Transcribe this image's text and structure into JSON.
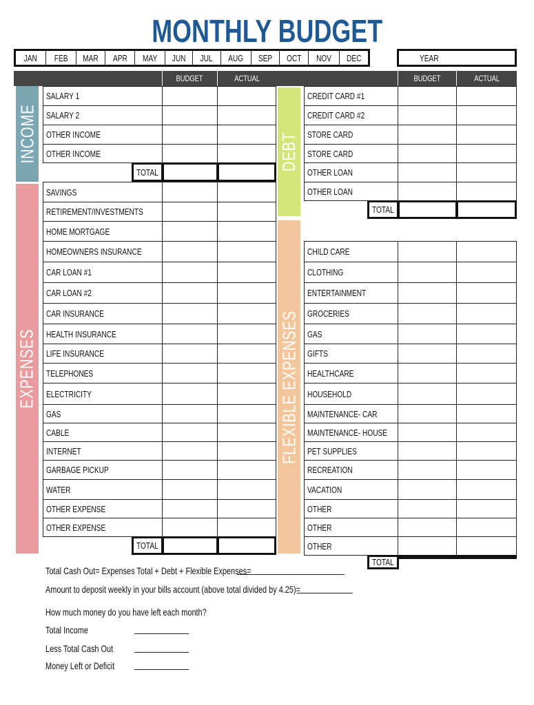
{
  "title": "MONTHLY BUDGET",
  "months": [
    "JAN",
    "FEB",
    "MAR",
    "APR",
    "MAY",
    "JUN",
    "JUL",
    "AUG",
    "SEP",
    "OCT",
    "NOV",
    "DEC"
  ],
  "year_label": "YEAR",
  "columns": {
    "budget": "BUDGET",
    "actual": "ACTUAL"
  },
  "total_label": "TOTAL",
  "colors": {
    "title": "#1f5a96",
    "income": "#7aa7b3",
    "expenses": "#e89a9c",
    "debt": "#d4e67a",
    "flexible": "#f3c59a",
    "header": "#444444"
  },
  "income": {
    "label": "INCOME",
    "items": [
      "SALARY  1",
      "SALARY  2",
      "OTHER INCOME",
      "OTHER INCOME"
    ]
  },
  "expenses": {
    "label": "EXPENSES",
    "items": [
      "SAVINGS",
      "RETIREMENT/INVESTMENTS",
      "HOME MORTGAGE",
      "HOMEOWNERS INSURANCE",
      "CAR LOAN #1",
      "CAR LOAN #2",
      "CAR INSURANCE",
      "HEALTH INSURANCE",
      "LIFE INSURANCE",
      "TELEPHONES",
      "ELECTRICITY",
      "GAS",
      "CABLE",
      "INTERNET",
      "GARBAGE PICKUP",
      "WATER",
      "OTHER EXPENSE",
      "OTHER EXPENSE"
    ]
  },
  "debt": {
    "label": "DEBT",
    "items": [
      "CREDIT CARD #1",
      "CREDIT CARD #2",
      "STORE CARD",
      "STORE CARD",
      "OTHER LOAN",
      "OTHER LOAN"
    ]
  },
  "flexible": {
    "label": "FLEXIBLE EXPENSES",
    "items": [
      "CHILD CARE",
      "CLOTHING",
      "ENTERTAINMENT",
      "GROCERIES",
      "GAS",
      "GIFTS",
      "HEALTHCARE",
      "HOUSEHOLD",
      "MAINTENANCE- CAR",
      "MAINTENANCE- HOUSE",
      "PET SUPPLIES",
      "RECREATION",
      "VACATION",
      "OTHER",
      "OTHER",
      "OTHER"
    ]
  },
  "summary": {
    "cash_out": "Total Cash Out= Expenses Total + Debt + Flexible Expenses=",
    "weekly": "Amount to deposit weekly in your bills account (above total divided by 4.25)=",
    "question": "How much money do you have left each month?",
    "total_income": "Total Income",
    "less_cash_out": "Less Total Cash Out",
    "money_left": "Money Left or Deficit"
  }
}
